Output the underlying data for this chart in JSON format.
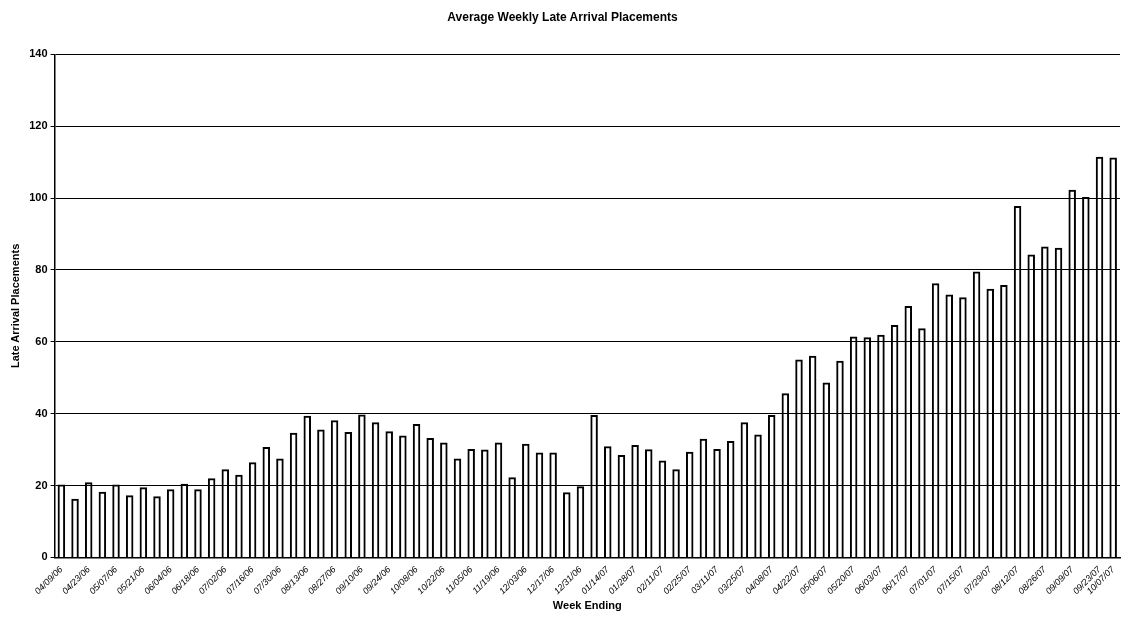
{
  "chart_data": {
    "type": "bar",
    "title": "Average Weekly Late Arrival Placements",
    "xlabel": "Week Ending",
    "ylabel": "Late Arrival Placements",
    "categories": [
      "04/09/06",
      null,
      "04/23/06",
      null,
      "05/07/06",
      null,
      "05/21/06",
      null,
      "06/04/06",
      null,
      "06/18/06",
      null,
      "07/02/06",
      null,
      "07/16/06",
      null,
      "07/30/06",
      null,
      "08/13/06",
      null,
      "08/27/06",
      null,
      "09/10/06",
      null,
      "09/24/06",
      null,
      "10/08/06",
      null,
      "10/22/06",
      null,
      "11/05/06",
      null,
      "11/19/06",
      null,
      "12/03/06",
      null,
      "12/17/06",
      null,
      "12/31/06",
      null,
      "01/14/07",
      null,
      "01/28/07",
      null,
      "02/11/07",
      null,
      "02/25/07",
      null,
      "03/11/07",
      null,
      "03/25/07",
      null,
      "04/08/07",
      null,
      "04/22/07",
      null,
      "05/06/07",
      null,
      "05/20/07",
      null,
      "06/03/07",
      null,
      "06/17/07",
      null,
      "07/01/07",
      null,
      "07/15/07",
      null,
      "07/29/07",
      null,
      "08/12/07",
      null,
      "08/26/07",
      null,
      "09/09/07",
      null,
      "09/23/07",
      "10/07/07"
    ],
    "values": [
      20.3,
      16.3,
      20.9,
      18.3,
      20.3,
      17.3,
      19.5,
      17.0,
      19.0,
      20.5,
      19.0,
      22.0,
      24.5,
      23.0,
      26.5,
      30.7,
      27.5,
      34.7,
      39.4,
      35.6,
      38.2,
      34.9,
      39.8,
      37.6,
      35.1,
      33.9,
      37.1,
      33.2,
      32.0,
      27.5,
      30.2,
      30.0,
      32.0,
      22.3,
      31.6,
      29.2,
      29.2,
      18.1,
      19.8,
      39.6,
      30.9,
      28.5,
      31.3,
      30.1,
      27.0,
      24.5,
      29.4,
      33.0,
      30.2,
      32.4,
      37.6,
      34.2,
      39.6,
      45.7,
      55.1,
      56.1,
      48.7,
      54.7,
      61.5,
      61.3,
      62.0,
      64.7,
      70.0,
      63.8,
      76.3,
      73.2,
      72.4,
      79.6,
      74.8,
      75.8,
      97.8,
      84.3,
      86.5,
      86.2,
      102.3,
      100.3,
      111.5,
      111.3
    ],
    "color": "#000000",
    "ylim": [
      0,
      140
    ],
    "yticks": [
      0,
      20,
      40,
      60,
      80,
      100,
      120,
      140
    ],
    "grid": "y"
  }
}
